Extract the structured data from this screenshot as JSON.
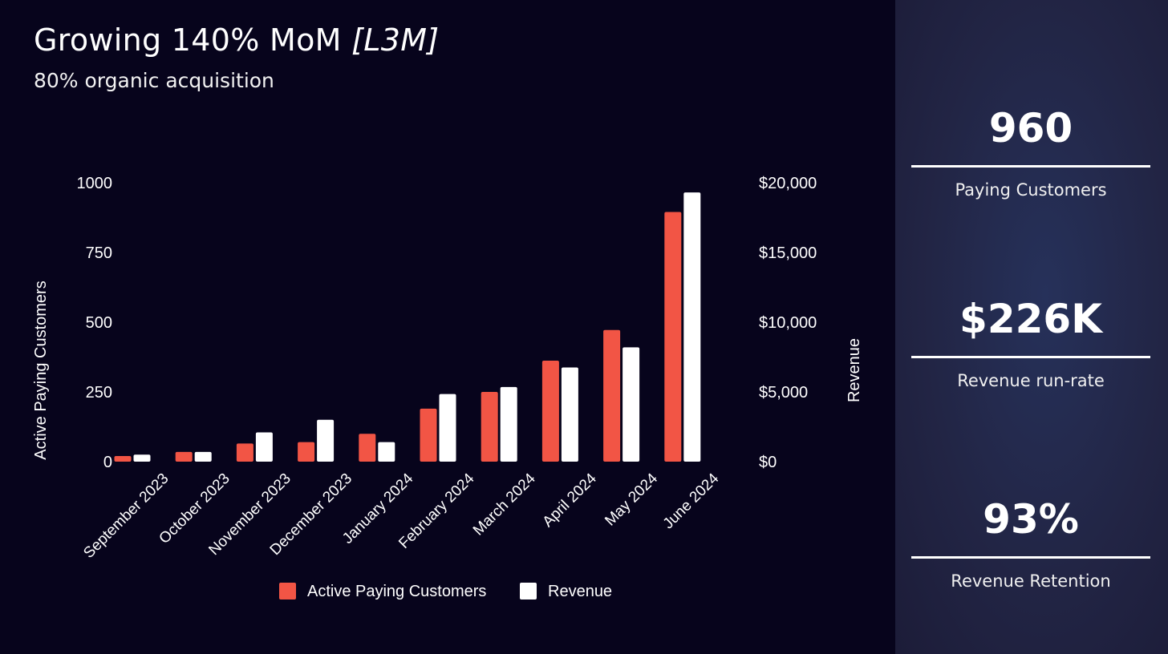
{
  "header": {
    "title_main": "Growing 140% MoM ",
    "title_em": "[L3M]",
    "subtitle": "80% organic acquisition"
  },
  "colors": {
    "background": "#07041c",
    "customers": "#f25545",
    "revenue": "#ffffff",
    "sidebar": "#222545"
  },
  "stats": [
    {
      "value": "960",
      "label": "Paying Customers"
    },
    {
      "value": "$226K",
      "label": "Revenue run-rate"
    },
    {
      "value": "93%",
      "label": "Revenue Retention"
    }
  ],
  "chart_data": {
    "type": "bar",
    "categories": [
      "September 2023",
      "October 2023",
      "November 2023",
      "December 2023",
      "January 2024",
      "February 2024",
      "March 2024",
      "April 2024",
      "May 2024",
      "June 2024"
    ],
    "series": [
      {
        "name": "Active Paying Customers",
        "axis": "left",
        "values": [
          20,
          35,
          65,
          70,
          100,
          190,
          250,
          362,
          472,
          895
        ]
      },
      {
        "name": "Revenue",
        "axis": "right",
        "values": [
          500,
          700,
          2100,
          3000,
          1400,
          4850,
          5350,
          6750,
          8200,
          19300
        ]
      }
    ],
    "ylabel": "Active Paying Customers",
    "y2label": "Revenue",
    "ylim": [
      0,
      1000
    ],
    "y2lim": [
      0,
      20000
    ],
    "yticks": [
      "0",
      "250",
      "500",
      "750",
      "1000"
    ],
    "y2ticks": [
      "$0",
      "$5,000",
      "$10,000",
      "$15,000",
      "$20,000"
    ],
    "legend_position": "bottom"
  }
}
